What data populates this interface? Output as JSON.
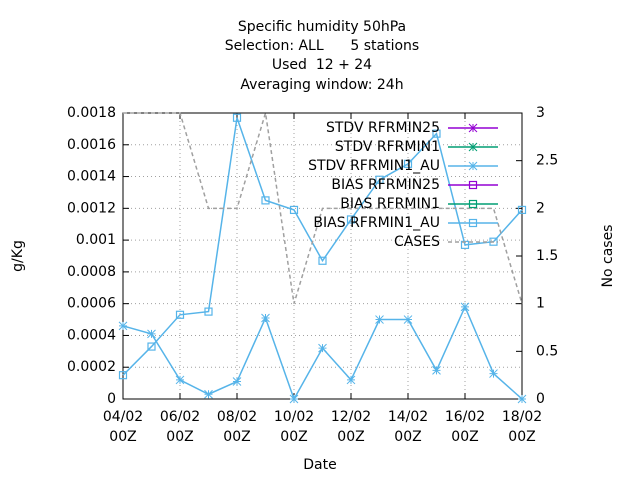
{
  "chart_data": {
    "type": "line",
    "title": [
      "Specific humidity 50hPa",
      "Selection: ALL      5 stations",
      "Used  12 + 24",
      "Averaging window: 24h"
    ],
    "xlabel": "Date",
    "ylabel": "g/Kg",
    "y2label": "No cases",
    "categories": [
      "04/02 00Z",
      null,
      "06/02 00Z",
      null,
      "08/02 00Z",
      null,
      "10/02 00Z",
      null,
      "12/02 00Z",
      null,
      "14/02 00Z",
      null,
      "16/02 00Z",
      null,
      "18/02 00Z"
    ],
    "ylim": [
      0,
      0.0018
    ],
    "yticks": [
      0,
      0.0002,
      0.0004,
      0.0006,
      0.0008,
      0.001,
      0.0012,
      0.0014,
      0.0016,
      0.0018
    ],
    "y2lim": [
      0,
      3
    ],
    "y2ticks": [
      0,
      0.5,
      1,
      1.5,
      2,
      2.5,
      3
    ],
    "grid": true,
    "legend": "top-right",
    "series": [
      {
        "name": "STDV RFRMIN25",
        "color": "#9400d3",
        "marker": "x",
        "values": [
          null,
          null,
          null,
          null,
          null,
          null,
          null,
          null,
          null,
          null,
          null,
          null,
          null,
          null,
          null
        ]
      },
      {
        "name": "STDV RFRMIN1",
        "color": "#009e73",
        "marker": "x",
        "values": [
          null,
          null,
          null,
          null,
          null,
          null,
          null,
          null,
          null,
          null,
          null,
          null,
          null,
          null,
          null
        ]
      },
      {
        "name": "STDV RFRMIN1_AU",
        "color": "#56b4e9",
        "marker": "x",
        "values": [
          0.00046,
          0.00041,
          0.00012,
          3e-05,
          0.00011,
          0.00051,
          0,
          0.00032,
          0.00012,
          0.0005,
          0.0005,
          0.00018,
          0.00058,
          0.00016,
          0
        ]
      },
      {
        "name": "BIAS RFRMIN25",
        "color": "#9400d3",
        "marker": "square",
        "values": [
          null,
          null,
          null,
          null,
          null,
          null,
          null,
          null,
          null,
          null,
          null,
          null,
          null,
          null,
          null
        ]
      },
      {
        "name": "BIAS RFRMIN1",
        "color": "#009e73",
        "marker": "square",
        "values": [
          null,
          null,
          null,
          null,
          null,
          null,
          null,
          null,
          null,
          null,
          null,
          null,
          null,
          null,
          null
        ]
      },
      {
        "name": "BIAS RFRMIN1_AU",
        "color": "#56b4e9",
        "marker": "square",
        "values": [
          0.00015,
          0.00033,
          0.00053,
          0.00055,
          0.00177,
          0.00125,
          0.00119,
          0.00087,
          0.00113,
          0.00138,
          0.00148,
          0.00167,
          0.00097,
          0.00099,
          0.00119
        ]
      },
      {
        "name": "CASES",
        "color": "#a0a0a0",
        "marker": "none",
        "dash": true,
        "axis": "y2",
        "values": [
          3,
          3,
          3,
          2,
          2,
          3,
          1,
          2,
          2,
          2,
          2,
          2,
          2,
          2,
          1
        ]
      }
    ]
  }
}
